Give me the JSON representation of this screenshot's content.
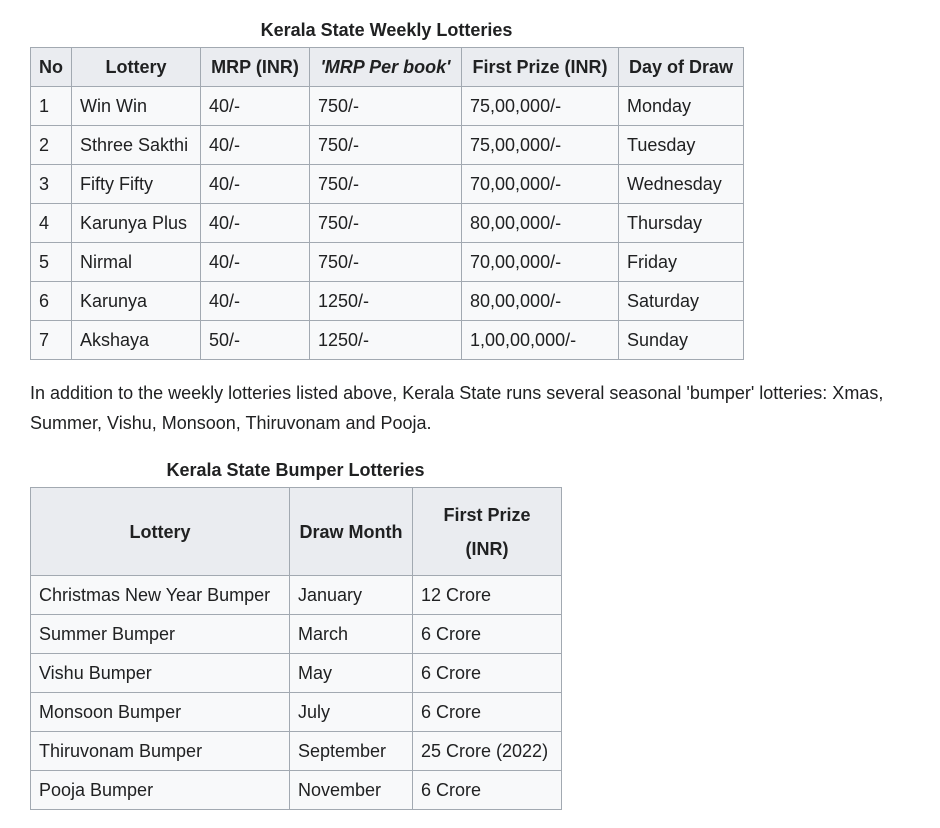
{
  "weekly": {
    "caption": "Kerala State Weekly Lotteries",
    "headers": [
      "No",
      "Lottery",
      "MRP (INR)",
      "'MRP Per book'",
      "First Prize (INR)",
      "Day of Draw"
    ],
    "rows": [
      [
        "1",
        "Win Win",
        "40/-",
        "750/-",
        "75,00,000/-",
        "Monday"
      ],
      [
        "2",
        "Sthree Sakthi",
        "40/-",
        "750/-",
        "75,00,000/-",
        "Tuesday"
      ],
      [
        "3",
        "Fifty Fifty",
        "40/-",
        "750/-",
        "70,00,000/-",
        "Wednesday"
      ],
      [
        "4",
        "Karunya Plus",
        "40/-",
        "750/-",
        "80,00,000/-",
        "Thursday"
      ],
      [
        "5",
        "Nirmal",
        "40/-",
        "750/-",
        "70,00,000/-",
        "Friday"
      ],
      [
        "6",
        "Karunya",
        "40/-",
        "1250/-",
        "80,00,000/-",
        "Saturday"
      ],
      [
        "7",
        "Akshaya",
        "50/-",
        "1250/-",
        "1,00,00,000/-",
        "Sunday"
      ]
    ]
  },
  "paragraph": "In addition to the weekly lotteries listed above, Kerala State runs several seasonal 'bumper' lotteries: Xmas, Summer, Vishu, Monsoon, Thiruvonam and Pooja.",
  "bumper": {
    "caption": "Kerala State Bumper Lotteries",
    "headers": [
      "Lottery",
      "Draw Month",
      "First Prize (INR)"
    ],
    "rows": [
      [
        "Christmas New Year Bumper",
        "January",
        "12 Crore"
      ],
      [
        "Summer Bumper",
        "March",
        "6 Crore"
      ],
      [
        "Vishu Bumper",
        "May",
        "6 Crore"
      ],
      [
        "Monsoon Bumper",
        "July",
        "6 Crore"
      ],
      [
        "Thiruvonam Bumper",
        "September",
        "25 Crore (2022)"
      ],
      [
        "Pooja Bumper",
        "November",
        "6 Crore"
      ]
    ]
  },
  "colors": {
    "header_bg": "#eaecf0",
    "cell_bg": "#f8f9fa",
    "border": "#a2a9b1",
    "text": "#202122"
  }
}
